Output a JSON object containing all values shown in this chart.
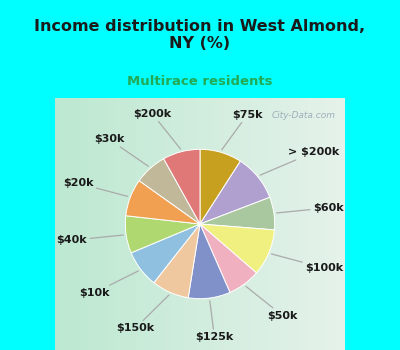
{
  "title": "Income distribution in West Almond,\nNY (%)",
  "subtitle": "Multirace residents",
  "title_color": "#1a1a1a",
  "subtitle_color": "#22aa55",
  "bg_color": "#00ffff",
  "chart_bg_left": "#c8e8d8",
  "chart_bg_right": "#e8f8f0",
  "watermark": "City-Data.com",
  "labels": [
    "$75k",
    "> $200k",
    "$60k",
    "$100k",
    "$50k",
    "$125k",
    "$150k",
    "$10k",
    "$40k",
    "$20k",
    "$30k",
    "$200k"
  ],
  "values": [
    9,
    10,
    7,
    10,
    7,
    9,
    8,
    8,
    8,
    8,
    7,
    8
  ],
  "colors": [
    "#c8a020",
    "#b0a0d0",
    "#aac8a0",
    "#f0f080",
    "#f0b0c0",
    "#8090c8",
    "#f0c8a0",
    "#90c0e0",
    "#b0d870",
    "#f0a050",
    "#c0b898",
    "#e07878"
  ],
  "startangle": 90,
  "label_fontsize": 8.0,
  "title_fontsize": 11.5,
  "subtitle_fontsize": 9.5
}
